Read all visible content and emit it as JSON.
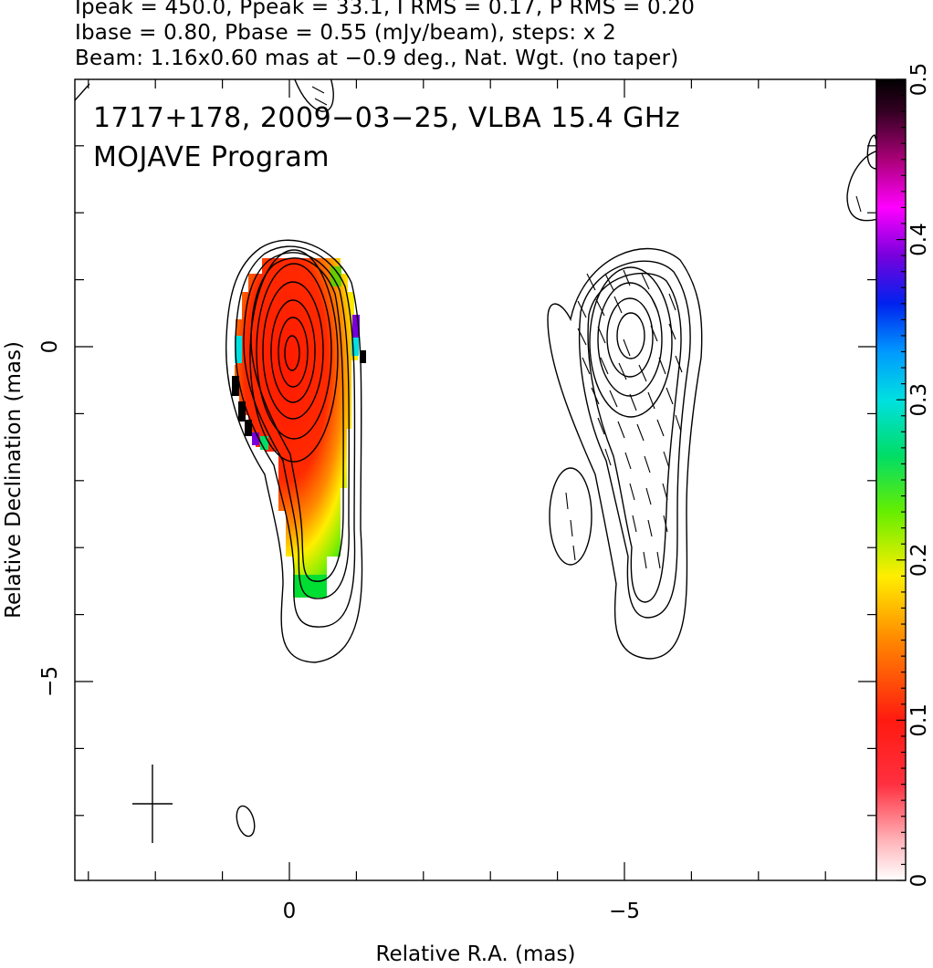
{
  "header": {
    "line1": "Ipeak = 450.0, Ppeak = 33.1, I RMS = 0.17, P RMS = 0.20",
    "line2": "Ibase = 0.80, Pbase = 0.55 (mJy/beam), steps: x 2",
    "line3": "Beam: 1.16x0.60 mas at −0.9 deg., Nat. Wgt. (no taper)"
  },
  "overlay": {
    "title": "1717+178, 2009−03−25, VLBA 15.4 GHz",
    "program": "MOJAVE Program"
  },
  "chart_data": {
    "type": "heatmap",
    "xlabel": "Relative R.A. (mas)",
    "ylabel": "Relative Declination (mas)",
    "xlim": [
      3.0,
      -8.8
    ],
    "ylim": [
      -8.0,
      4.0
    ],
    "x_ticks": [
      {
        "value": 0,
        "label": "0"
      },
      {
        "value": -5,
        "label": "−5"
      }
    ],
    "y_ticks": [
      {
        "value": 0,
        "label": "0"
      },
      {
        "value": -5,
        "label": "−5"
      }
    ],
    "colorbar": {
      "range": [
        0,
        0.5
      ],
      "ticks": [
        {
          "value": 0,
          "label": "0"
        },
        {
          "value": 0.1,
          "label": "0.1"
        },
        {
          "value": 0.2,
          "label": "0.2"
        },
        {
          "value": 0.3,
          "label": "0.3"
        },
        {
          "value": 0.4,
          "label": "0.4"
        },
        {
          "value": 0.5,
          "label": "0.5"
        }
      ]
    },
    "panels": [
      {
        "name": "left",
        "content": "total intensity contours with fractional polarization color map"
      },
      {
        "name": "right",
        "content": "total intensity contours with polarization vectors"
      }
    ],
    "beam_cross_center_mas": [
      2.0,
      -6.8
    ],
    "colors": {
      "axes": "#000000",
      "background": "#ffffff"
    }
  }
}
